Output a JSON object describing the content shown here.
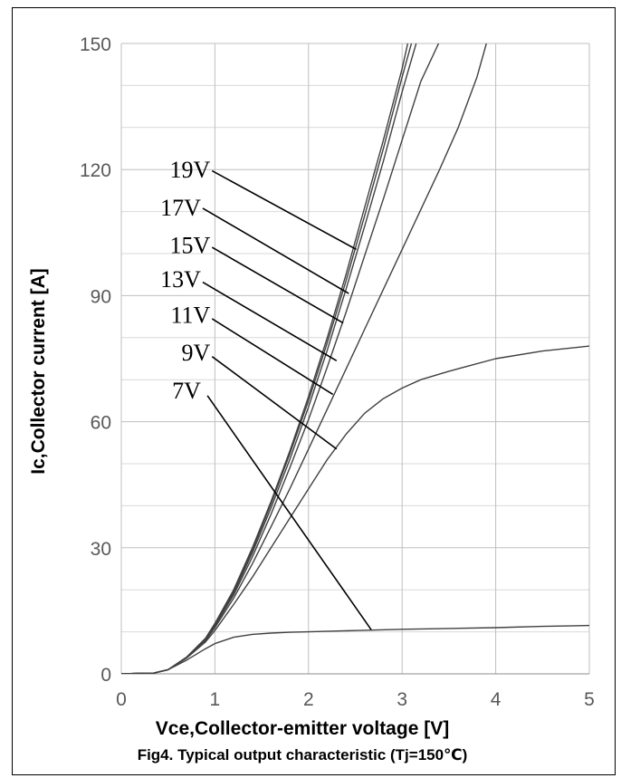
{
  "chart_data": {
    "type": "line",
    "xlabel": "Vce,Collector-emitter voltage [V]",
    "ylabel": "Ic,Collector current [A]",
    "caption": "Fig4. Typical output characteristic (Tj=150℃)",
    "xlim": [
      0,
      5
    ],
    "ylim": [
      0,
      150
    ],
    "x_ticks": [
      "0",
      "1",
      "2",
      "3",
      "4",
      "5"
    ],
    "y_ticks": [
      "0",
      "30",
      "60",
      "90",
      "120",
      "150"
    ],
    "x_tick_values": [
      0,
      1,
      2,
      3,
      4,
      5
    ],
    "y_tick_values": [
      0,
      30,
      60,
      90,
      120,
      150
    ],
    "grid": true,
    "series": [
      {
        "name": "19V",
        "x": [
          0,
          0.35,
          0.5,
          0.7,
          0.9,
          1.0,
          1.2,
          1.4,
          1.6,
          1.8,
          2.0,
          2.2,
          2.4,
          2.6,
          2.8,
          3.0,
          3.06
        ],
        "y": [
          0,
          0.2,
          1,
          4,
          8.5,
          12,
          20,
          30,
          41,
          53,
          66,
          80,
          95,
          111,
          127,
          144,
          150
        ]
      },
      {
        "name": "17V",
        "x": [
          0,
          0.35,
          0.5,
          0.7,
          0.9,
          1.0,
          1.2,
          1.4,
          1.6,
          1.8,
          2.0,
          2.2,
          2.4,
          2.6,
          2.8,
          3.0,
          3.1
        ],
        "y": [
          0,
          0.2,
          1,
          4,
          8.4,
          11.8,
          19.7,
          29.5,
          40.5,
          52.3,
          65,
          78.8,
          93.5,
          109,
          125,
          142,
          150
        ]
      },
      {
        "name": "15V",
        "x": [
          0,
          0.35,
          0.5,
          0.7,
          0.9,
          1.0,
          1.2,
          1.4,
          1.6,
          1.8,
          2.0,
          2.2,
          2.4,
          2.6,
          2.8,
          3.0,
          3.15
        ],
        "y": [
          0,
          0.2,
          1,
          4,
          8.3,
          11.6,
          19.3,
          28.8,
          39.5,
          51,
          63.5,
          77,
          91.5,
          106.5,
          122,
          138.5,
          150
        ]
      },
      {
        "name": "13V",
        "x": [
          0,
          0.35,
          0.5,
          0.7,
          0.9,
          1.0,
          1.2,
          1.4,
          1.6,
          1.8,
          2.0,
          2.2,
          2.4,
          2.6,
          2.8,
          3.0,
          3.2,
          3.39
        ],
        "y": [
          0,
          0.2,
          1,
          4,
          8.2,
          11.4,
          18.8,
          27.8,
          38,
          49,
          60.5,
          73,
          86,
          99.5,
          113,
          127,
          141,
          150
        ]
      },
      {
        "name": "11V",
        "x": [
          0,
          0.35,
          0.5,
          0.7,
          0.9,
          1.0,
          1.2,
          1.4,
          1.6,
          1.8,
          2.0,
          2.2,
          2.4,
          2.6,
          2.8,
          3.0,
          3.2,
          3.4,
          3.6,
          3.8,
          3.9
        ],
        "y": [
          0,
          0.2,
          1,
          3.9,
          8,
          11,
          18,
          26.2,
          35,
          44,
          53.5,
          63,
          72.5,
          82,
          91.5,
          101,
          110.5,
          120,
          130,
          142,
          150
        ]
      },
      {
        "name": "9V",
        "x": [
          0,
          0.35,
          0.5,
          0.7,
          0.9,
          1.0,
          1.2,
          1.4,
          1.6,
          1.8,
          2.0,
          2.2,
          2.4,
          2.6,
          2.8,
          3.0,
          3.2,
          3.5,
          4.0,
          4.5,
          5.0
        ],
        "y": [
          0,
          0.2,
          1,
          3.8,
          7.6,
          10.3,
          16.5,
          23,
          30,
          37,
          44,
          51,
          57,
          62,
          65.5,
          68,
          70,
          72,
          75,
          76.8,
          78
        ]
      },
      {
        "name": "7V",
        "x": [
          0,
          0.35,
          0.5,
          0.7,
          0.9,
          1.0,
          1.2,
          1.4,
          1.6,
          1.8,
          2.0,
          2.5,
          3.0,
          3.5,
          4.0,
          4.5,
          5.0
        ],
        "y": [
          0,
          0.2,
          1,
          3.3,
          6,
          7.2,
          8.7,
          9.4,
          9.7,
          9.9,
          10,
          10.3,
          10.6,
          10.8,
          11,
          11.3,
          11.5
        ]
      }
    ],
    "annotations": [
      {
        "text": "19V",
        "text_x": 0.97,
        "text_y": 120,
        "line_from": [
          0.97,
          119.7
        ],
        "line_to": [
          2.51,
          101
        ]
      },
      {
        "text": "17V",
        "text_x": 0.87,
        "text_y": 111,
        "line_from": [
          0.87,
          110.8
        ],
        "line_to": [
          2.43,
          90.5
        ]
      },
      {
        "text": "15V",
        "text_x": 0.97,
        "text_y": 102,
        "line_from": [
          0.97,
          101.5
        ],
        "line_to": [
          2.37,
          83.5
        ]
      },
      {
        "text": "13V",
        "text_x": 0.87,
        "text_y": 94,
        "line_from": [
          0.87,
          93.2
        ],
        "line_to": [
          2.3,
          74.5
        ]
      },
      {
        "text": "11V",
        "text_x": 0.97,
        "text_y": 85.5,
        "line_from": [
          0.97,
          84.5
        ],
        "line_to": [
          2.26,
          66.5
        ]
      },
      {
        "text": "9V",
        "text_x": 0.97,
        "text_y": 76.5,
        "line_from": [
          0.97,
          75.5
        ],
        "line_to": [
          2.3,
          53.5
        ]
      },
      {
        "text": "7V",
        "text_x": 0.87,
        "text_y": 67.5,
        "line_from": [
          0.92,
          66.2
        ],
        "line_to": [
          2.67,
          10.5
        ]
      }
    ]
  }
}
